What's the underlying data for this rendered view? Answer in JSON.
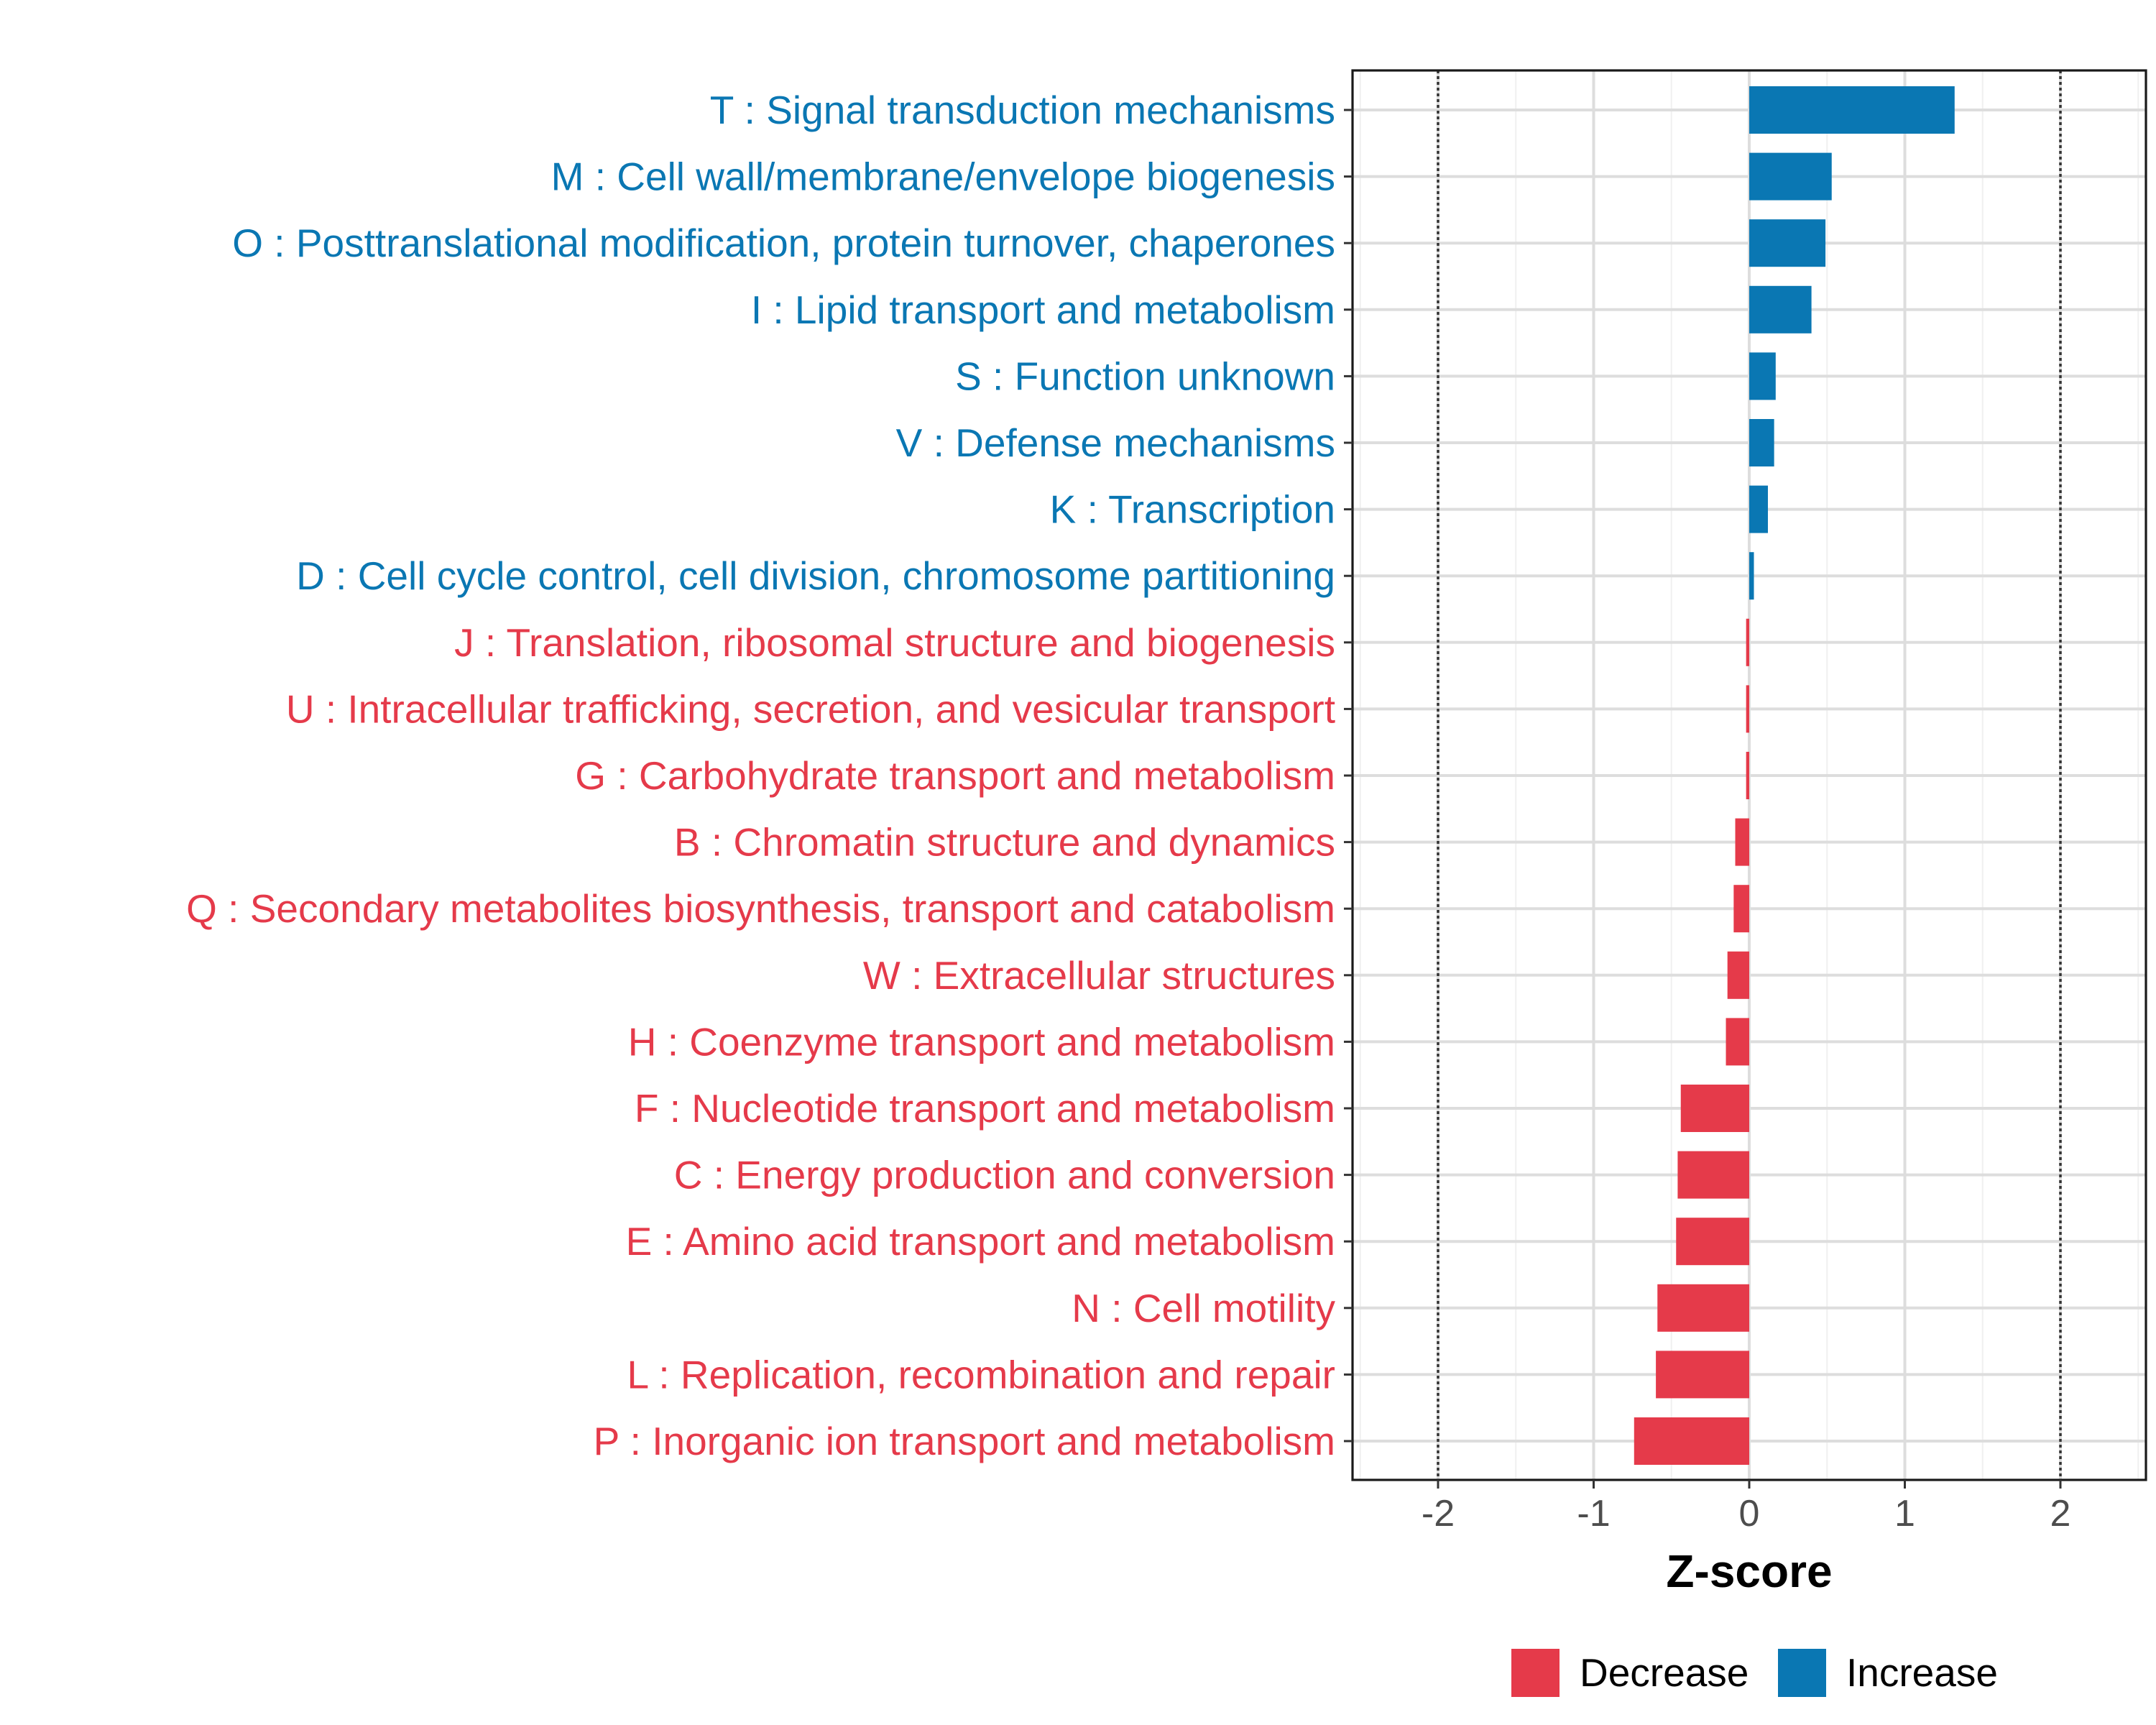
{
  "chart_data": {
    "type": "bar",
    "orientation": "horizontal",
    "title": "",
    "xlabel": "Z-score",
    "ylabel": "",
    "xlim": [
      -2.55,
      2.55
    ],
    "xticks": [
      -2,
      -1,
      0,
      1,
      2
    ],
    "xtick_labels": [
      "-2",
      "-1",
      "0",
      "1",
      "2"
    ],
    "reference_lines": [
      -2,
      2
    ],
    "grid": true,
    "legend_position": "bottom",
    "colors": {
      "Increase": "#0a77b3",
      "Decrease": "#e53a4a"
    },
    "legend": [
      {
        "label": "Decrease",
        "group": "Decrease"
      },
      {
        "label": "Increase",
        "group": "Increase"
      }
    ],
    "categories": [
      {
        "label": "T : Signal transduction mechanisms",
        "value": 1.32,
        "group": "Increase"
      },
      {
        "label": "M : Cell wall/membrane/envelope biogenesis",
        "value": 0.53,
        "group": "Increase"
      },
      {
        "label": "O : Posttranslational modification, protein turnover, chaperones",
        "value": 0.49,
        "group": "Increase"
      },
      {
        "label": "I : Lipid transport and metabolism",
        "value": 0.4,
        "group": "Increase"
      },
      {
        "label": "S : Function unknown",
        "value": 0.17,
        "group": "Increase"
      },
      {
        "label": "V : Defense mechanisms",
        "value": 0.16,
        "group": "Increase"
      },
      {
        "label": "K : Transcription",
        "value": 0.12,
        "group": "Increase"
      },
      {
        "label": "D : Cell cycle control, cell division, chromosome partitioning",
        "value": 0.03,
        "group": "Increase"
      },
      {
        "label": "J : Translation, ribosomal structure and biogenesis",
        "value": -0.02,
        "group": "Decrease"
      },
      {
        "label": "U : Intracellular trafficking, secretion, and vesicular transport",
        "value": -0.02,
        "group": "Decrease"
      },
      {
        "label": "G : Carbohydrate transport and metabolism",
        "value": -0.02,
        "group": "Decrease"
      },
      {
        "label": "B : Chromatin structure and dynamics",
        "value": -0.09,
        "group": "Decrease"
      },
      {
        "label": "Q : Secondary metabolites biosynthesis, transport and catabolism",
        "value": -0.1,
        "group": "Decrease"
      },
      {
        "label": "W : Extracellular structures",
        "value": -0.14,
        "group": "Decrease"
      },
      {
        "label": "H : Coenzyme transport and metabolism",
        "value": -0.15,
        "group": "Decrease"
      },
      {
        "label": "F : Nucleotide transport and metabolism",
        "value": -0.44,
        "group": "Decrease"
      },
      {
        "label": "C : Energy production and conversion",
        "value": -0.46,
        "group": "Decrease"
      },
      {
        "label": "E : Amino acid transport and metabolism",
        "value": -0.47,
        "group": "Decrease"
      },
      {
        "label": "N : Cell motility",
        "value": -0.59,
        "group": "Decrease"
      },
      {
        "label": "L : Replication, recombination and repair",
        "value": -0.6,
        "group": "Decrease"
      },
      {
        "label": "P : Inorganic ion transport and metabolism",
        "value": -0.74,
        "group": "Decrease"
      }
    ]
  }
}
